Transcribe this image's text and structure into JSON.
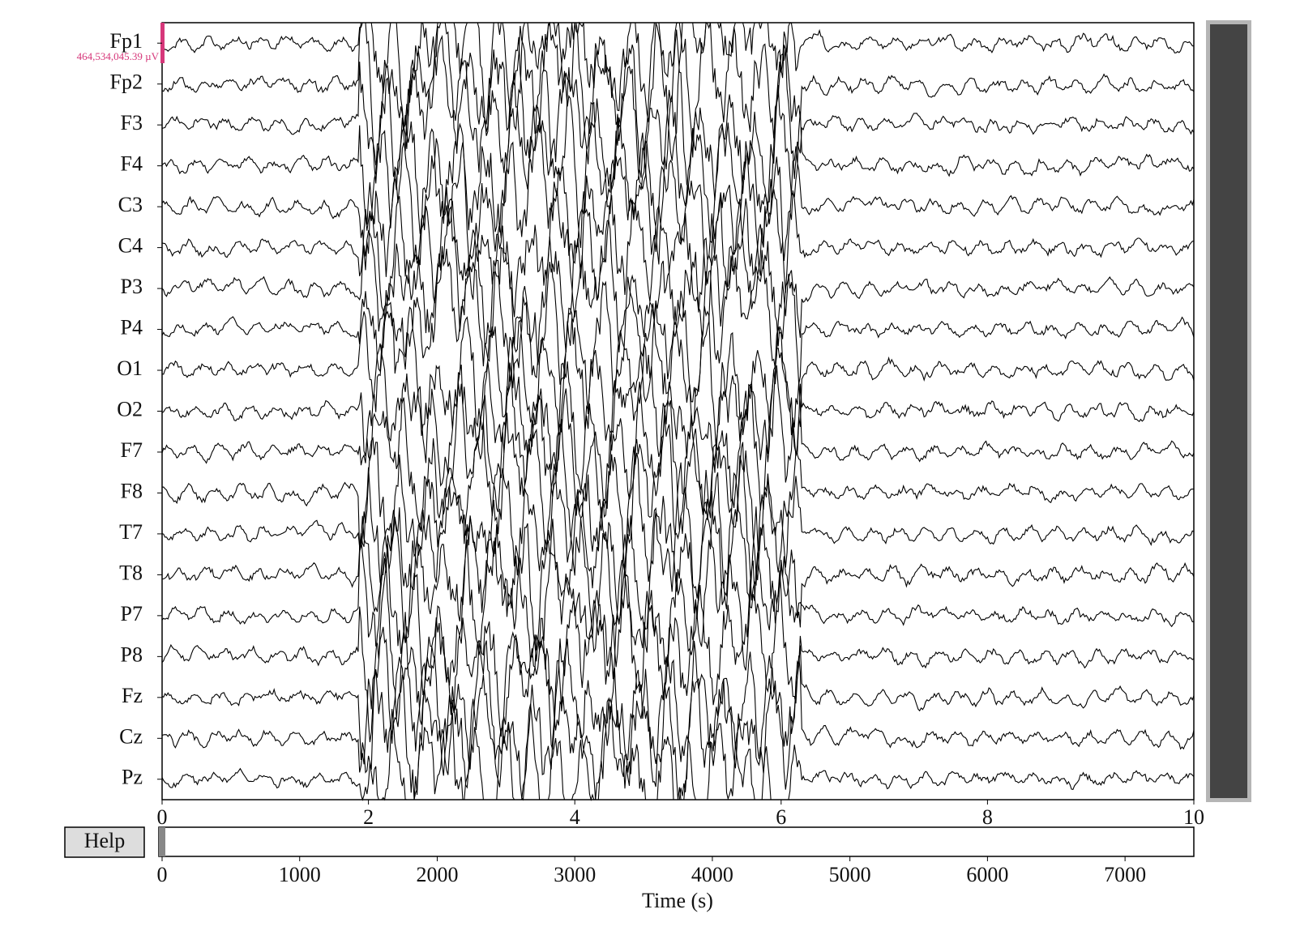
{
  "viewer": {
    "channels": [
      "Fp1",
      "Fp2",
      "F3",
      "F4",
      "C3",
      "C4",
      "P3",
      "P4",
      "O1",
      "O2",
      "F7",
      "F8",
      "T7",
      "T8",
      "P7",
      "P8",
      "Fz",
      "Cz",
      "Pz"
    ],
    "scale_label": "464,534,045.39 µV",
    "xlim": [
      0,
      10
    ],
    "xticks": [
      0,
      2,
      4,
      6,
      8,
      10
    ],
    "help_button": "Help",
    "overview": {
      "xlim": [
        0,
        7500
      ],
      "xticks": [
        0,
        1000,
        2000,
        3000,
        4000,
        5000,
        6000,
        7000
      ],
      "xlabel": "Time (s)"
    }
  }
}
